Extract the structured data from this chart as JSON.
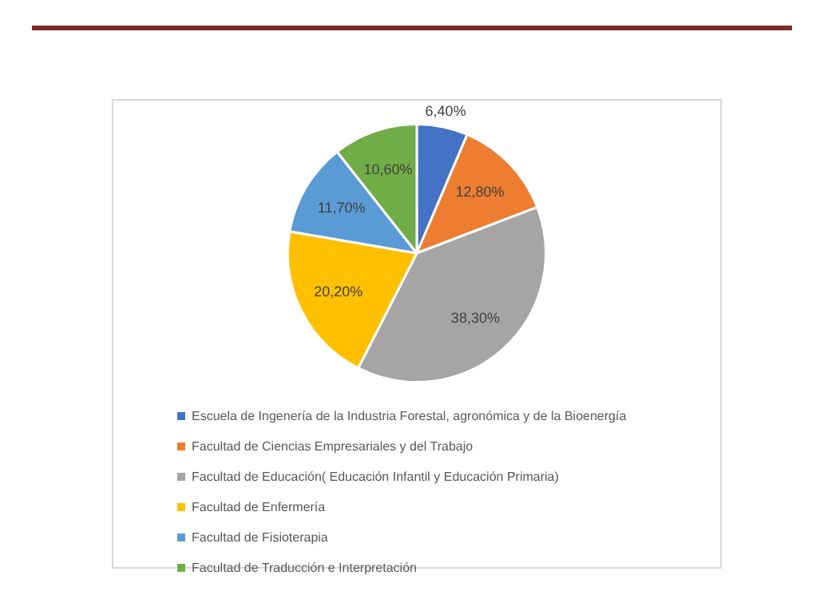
{
  "chart_data": {
    "type": "pie",
    "categories": [
      "Escuela de Ingenería de la Industria Forestal, agronómica y de la Bioenergía",
      "Facultad de Ciencias Empresariales y del Trabajo",
      "Facultad de Educación( Educación Infantil y Educación Primaria)",
      "Facultad de Enfermería",
      "Facultad de Fisioterapia",
      "Facultad de Traducción e Interpretación"
    ],
    "values": [
      6.4,
      12.8,
      38.3,
      20.2,
      11.7,
      10.6
    ],
    "value_labels": [
      "6,40%",
      "12,80%",
      "38,30%",
      "20,20%",
      "11,70%",
      "10,60%"
    ],
    "colors": [
      "#4472c4",
      "#ed7d31",
      "#a5a5a5",
      "#ffc000",
      "#5b9bd5",
      "#70ad47"
    ],
    "legend": "bottom"
  }
}
